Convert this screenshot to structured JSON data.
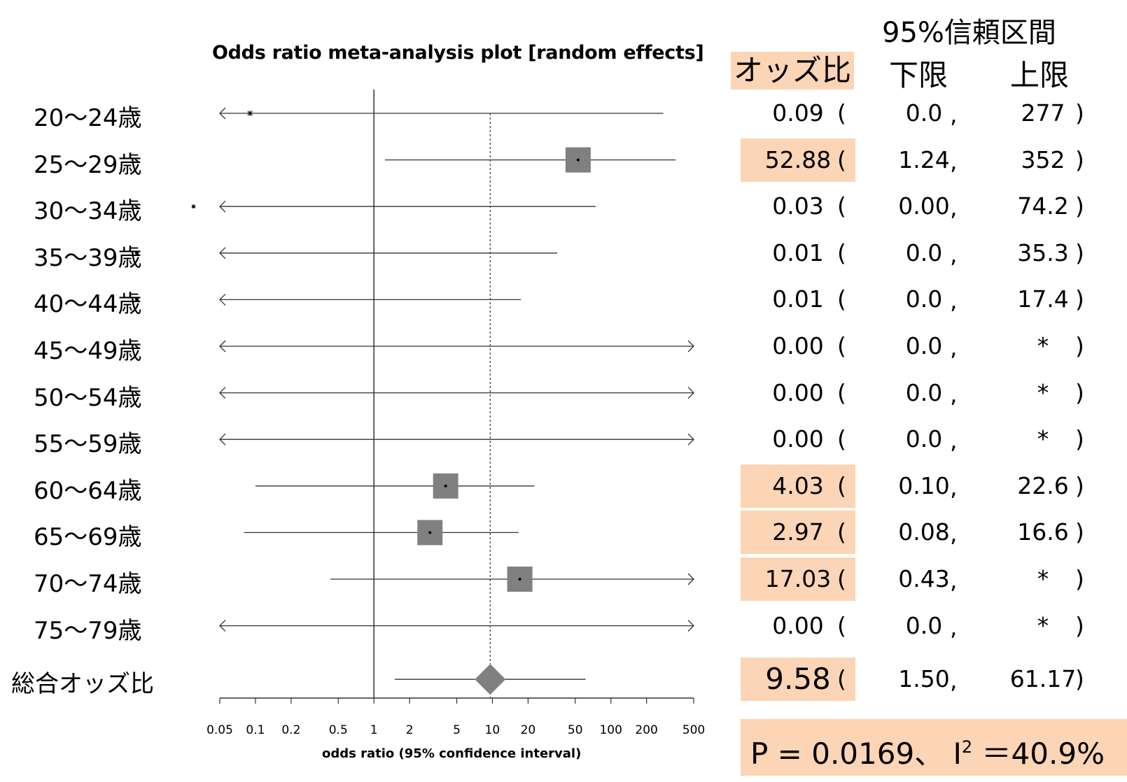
{
  "chart_data": {
    "type": "forest",
    "title": "Odds ratio meta-analysis plot [random effects]",
    "xlabel": "odds ratio (95% confidence interval)",
    "x_scale": "log",
    "xlim": [
      0.05,
      500
    ],
    "ticks": [
      "0.05",
      "0.1",
      "0.2",
      "0.5",
      "1",
      "2",
      "5",
      "10",
      "20",
      "50",
      "100",
      "200",
      "500"
    ],
    "reference_line": 1,
    "pooled_line": 9.58,
    "rows": [
      {
        "label": "20〜24歳",
        "or": 0.09,
        "lo": 0.0,
        "hi": 277,
        "or_text": "0.09",
        "lo_text": "0.0",
        "hi_text": "277",
        "highlight": false,
        "weight": 0.2
      },
      {
        "label": "25〜29歳",
        "or": 52.88,
        "lo": 1.24,
        "hi": 352,
        "or_text": "52.88",
        "lo_text": "1.24",
        "hi_text": "352",
        "highlight": true,
        "weight": 1.0
      },
      {
        "label": "30〜34歳",
        "or": 0.03,
        "lo": 0.0,
        "hi": 74.2,
        "or_text": "0.03",
        "lo_text": "0.00",
        "hi_text": "74.2",
        "highlight": false,
        "weight": 0.15
      },
      {
        "label": "35〜39歳",
        "or": 0.01,
        "lo": 0.0,
        "hi": 35.3,
        "or_text": "0.01",
        "lo_text": "0.0",
        "hi_text": "35.3",
        "highlight": false,
        "weight": 0.15
      },
      {
        "label": "40〜44歳",
        "or": 0.01,
        "lo": 0.0,
        "hi": 17.4,
        "or_text": "0.01",
        "lo_text": "0.0",
        "hi_text": "17.4",
        "highlight": false,
        "weight": 0.15
      },
      {
        "label": "45〜49歳",
        "or": 0.0,
        "lo": 0.0,
        "hi": null,
        "or_text": "0.00",
        "lo_text": "0.0",
        "hi_text": "*",
        "highlight": false,
        "weight": 0.15
      },
      {
        "label": "50〜54歳",
        "or": 0.0,
        "lo": 0.0,
        "hi": null,
        "or_text": "0.00",
        "lo_text": "0.0",
        "hi_text": "*",
        "highlight": false,
        "weight": 0.15
      },
      {
        "label": "55〜59歳",
        "or": 0.0,
        "lo": 0.0,
        "hi": null,
        "or_text": "0.00",
        "lo_text": "0.0",
        "hi_text": "*",
        "highlight": false,
        "weight": 0.15
      },
      {
        "label": "60〜64歳",
        "or": 4.03,
        "lo": 0.1,
        "hi": 22.6,
        "or_text": "4.03",
        "lo_text": "0.10",
        "hi_text": "22.6",
        "highlight": true,
        "weight": 1.0
      },
      {
        "label": "65〜69歳",
        "or": 2.97,
        "lo": 0.08,
        "hi": 16.6,
        "or_text": "2.97",
        "lo_text": "0.08",
        "hi_text": "16.6",
        "highlight": true,
        "weight": 1.0
      },
      {
        "label": "70〜74歳",
        "or": 17.03,
        "lo": 0.43,
        "hi": null,
        "or_text": "17.03",
        "lo_text": "0.43",
        "hi_text": "*",
        "highlight": true,
        "weight": 1.0
      },
      {
        "label": "75〜79歳",
        "or": 0.0,
        "lo": 0.0,
        "hi": null,
        "or_text": "0.00",
        "lo_text": "0.0",
        "hi_text": "*",
        "highlight": false,
        "weight": 0.15
      }
    ],
    "pooled": {
      "label": "総合オッズ比",
      "or": 9.58,
      "lo": 1.5,
      "hi": 61.17,
      "or_text": "9.58",
      "lo_text": "1.50",
      "hi_text": "61.17"
    }
  },
  "headers": {
    "or": "オッズ比",
    "ci": "95%信頼区間",
    "lo": "下限",
    "hi": "上限"
  },
  "punct": {
    "open": "(",
    "comma": ",",
    "close": ")"
  },
  "stats": {
    "p": "P = 0.0169、 I",
    "sup": "2",
    "i2": " ＝40.9%"
  },
  "colors": {
    "highlight": "#fbd5b5",
    "marker": "#808080",
    "line": "#333333"
  }
}
